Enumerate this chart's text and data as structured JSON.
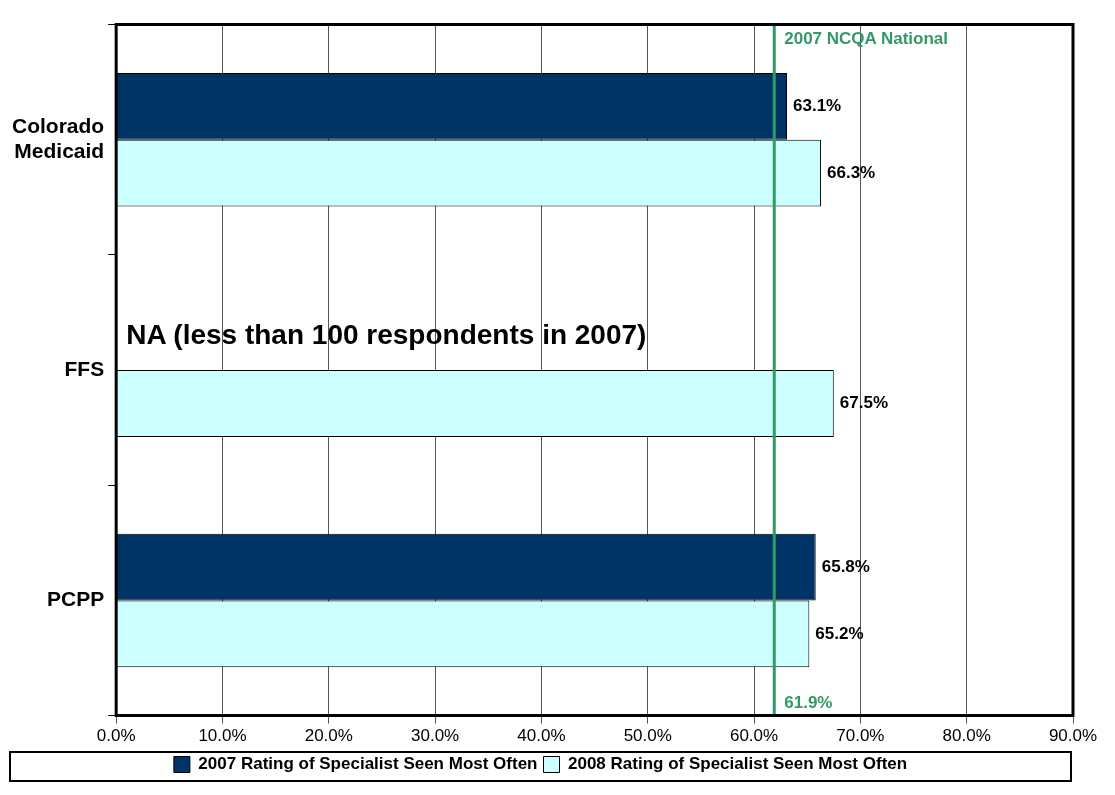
{
  "chart_data": {
    "type": "bar",
    "orientation": "horizontal",
    "categories": [
      "Colorado Medicaid",
      "FFS",
      "PCPP"
    ],
    "series": [
      {
        "name": "2007 Rating of Specialist Seen Most Often",
        "color": "#003366",
        "values": [
          63.1,
          null,
          65.8
        ],
        "value_labels": [
          "63.1%",
          null,
          "65.8%"
        ]
      },
      {
        "name": "2008 Rating of Specialist Seen Most Often",
        "color": "#ccffff",
        "values": [
          66.3,
          67.5,
          65.2
        ],
        "value_labels": [
          "66.3%",
          "67.5%",
          "65.2%"
        ]
      }
    ],
    "xlim": [
      0,
      90
    ],
    "xticks": [
      {
        "value": 0,
        "label": "0.0%"
      },
      {
        "value": 10,
        "label": "10.0%"
      },
      {
        "value": 20,
        "label": "20.0%"
      },
      {
        "value": 30,
        "label": "30.0%"
      },
      {
        "value": 40,
        "label": "40.0%"
      },
      {
        "value": 50,
        "label": "50.0%"
      },
      {
        "value": 60,
        "label": "60.0%"
      },
      {
        "value": 70,
        "label": "70.0%"
      },
      {
        "value": 80,
        "label": "80.0%"
      },
      {
        "value": 90,
        "label": "90.0%"
      }
    ],
    "ref_lines": [
      {
        "axis": "x",
        "value": 61.9,
        "label": "61.9%",
        "color": "#339966"
      }
    ],
    "annotations": [
      {
        "text": "2007 NCQA National",
        "x": 61.9
      },
      {
        "text": "NA (less than 100 respondents in 2007)",
        "y": "FFS"
      }
    ],
    "grid": "x",
    "legend": "bottom"
  }
}
